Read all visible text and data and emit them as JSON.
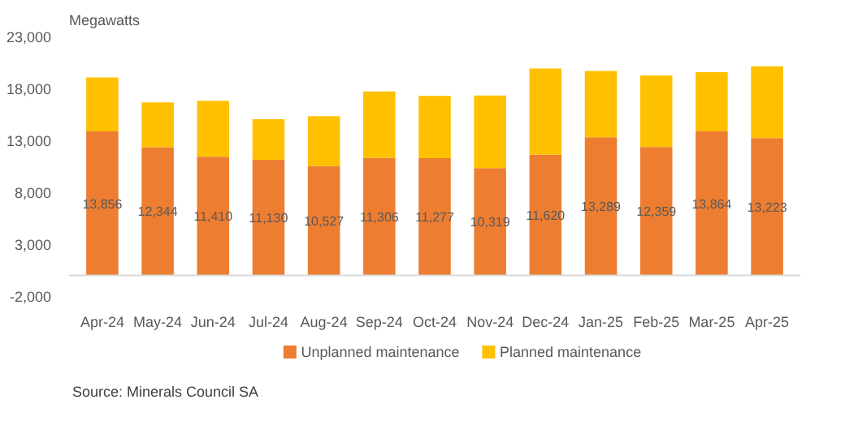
{
  "chart_data": {
    "type": "bar",
    "stacked": true,
    "ylabel": "Megawatts",
    "categories": [
      "Apr-24",
      "May-24",
      "Jun-24",
      "Jul-24",
      "Aug-24",
      "Sep-24",
      "Oct-24",
      "Nov-24",
      "Dec-24",
      "Jan-25",
      "Feb-25",
      "Mar-25",
      "Apr-25"
    ],
    "series": [
      {
        "name": "Unplanned maintenance",
        "color": "#ed7d31",
        "values": [
          13856,
          12344,
          11410,
          11130,
          10527,
          11306,
          11277,
          10319,
          11620,
          13289,
          12359,
          13864,
          13223
        ],
        "value_labels": [
          "13,856",
          "12,344",
          "11,410",
          "11,130",
          "10,527",
          "11,306",
          "11,277",
          "10,319",
          "11,620",
          "13,289",
          "12,359",
          "13,864",
          "13,223"
        ]
      },
      {
        "name": "Planned maintenance",
        "color": "#ffc000",
        "values": [
          5200,
          4300,
          5400,
          3900,
          4800,
          6400,
          6000,
          7000,
          8300,
          6400,
          6900,
          5700,
          6900
        ]
      }
    ],
    "ylim": [
      -2000,
      23000
    ],
    "yticks": [
      {
        "value": -2000,
        "label": "-2,000"
      },
      {
        "value": 3000,
        "label": "3,000"
      },
      {
        "value": 8000,
        "label": "8,000"
      },
      {
        "value": 13000,
        "label": "13,000"
      },
      {
        "value": 18000,
        "label": "18,000"
      },
      {
        "value": 23000,
        "label": "23,000"
      }
    ],
    "grid": false,
    "legend": "bottom",
    "annotations": [
      "Source: Minerals Council SA"
    ]
  }
}
